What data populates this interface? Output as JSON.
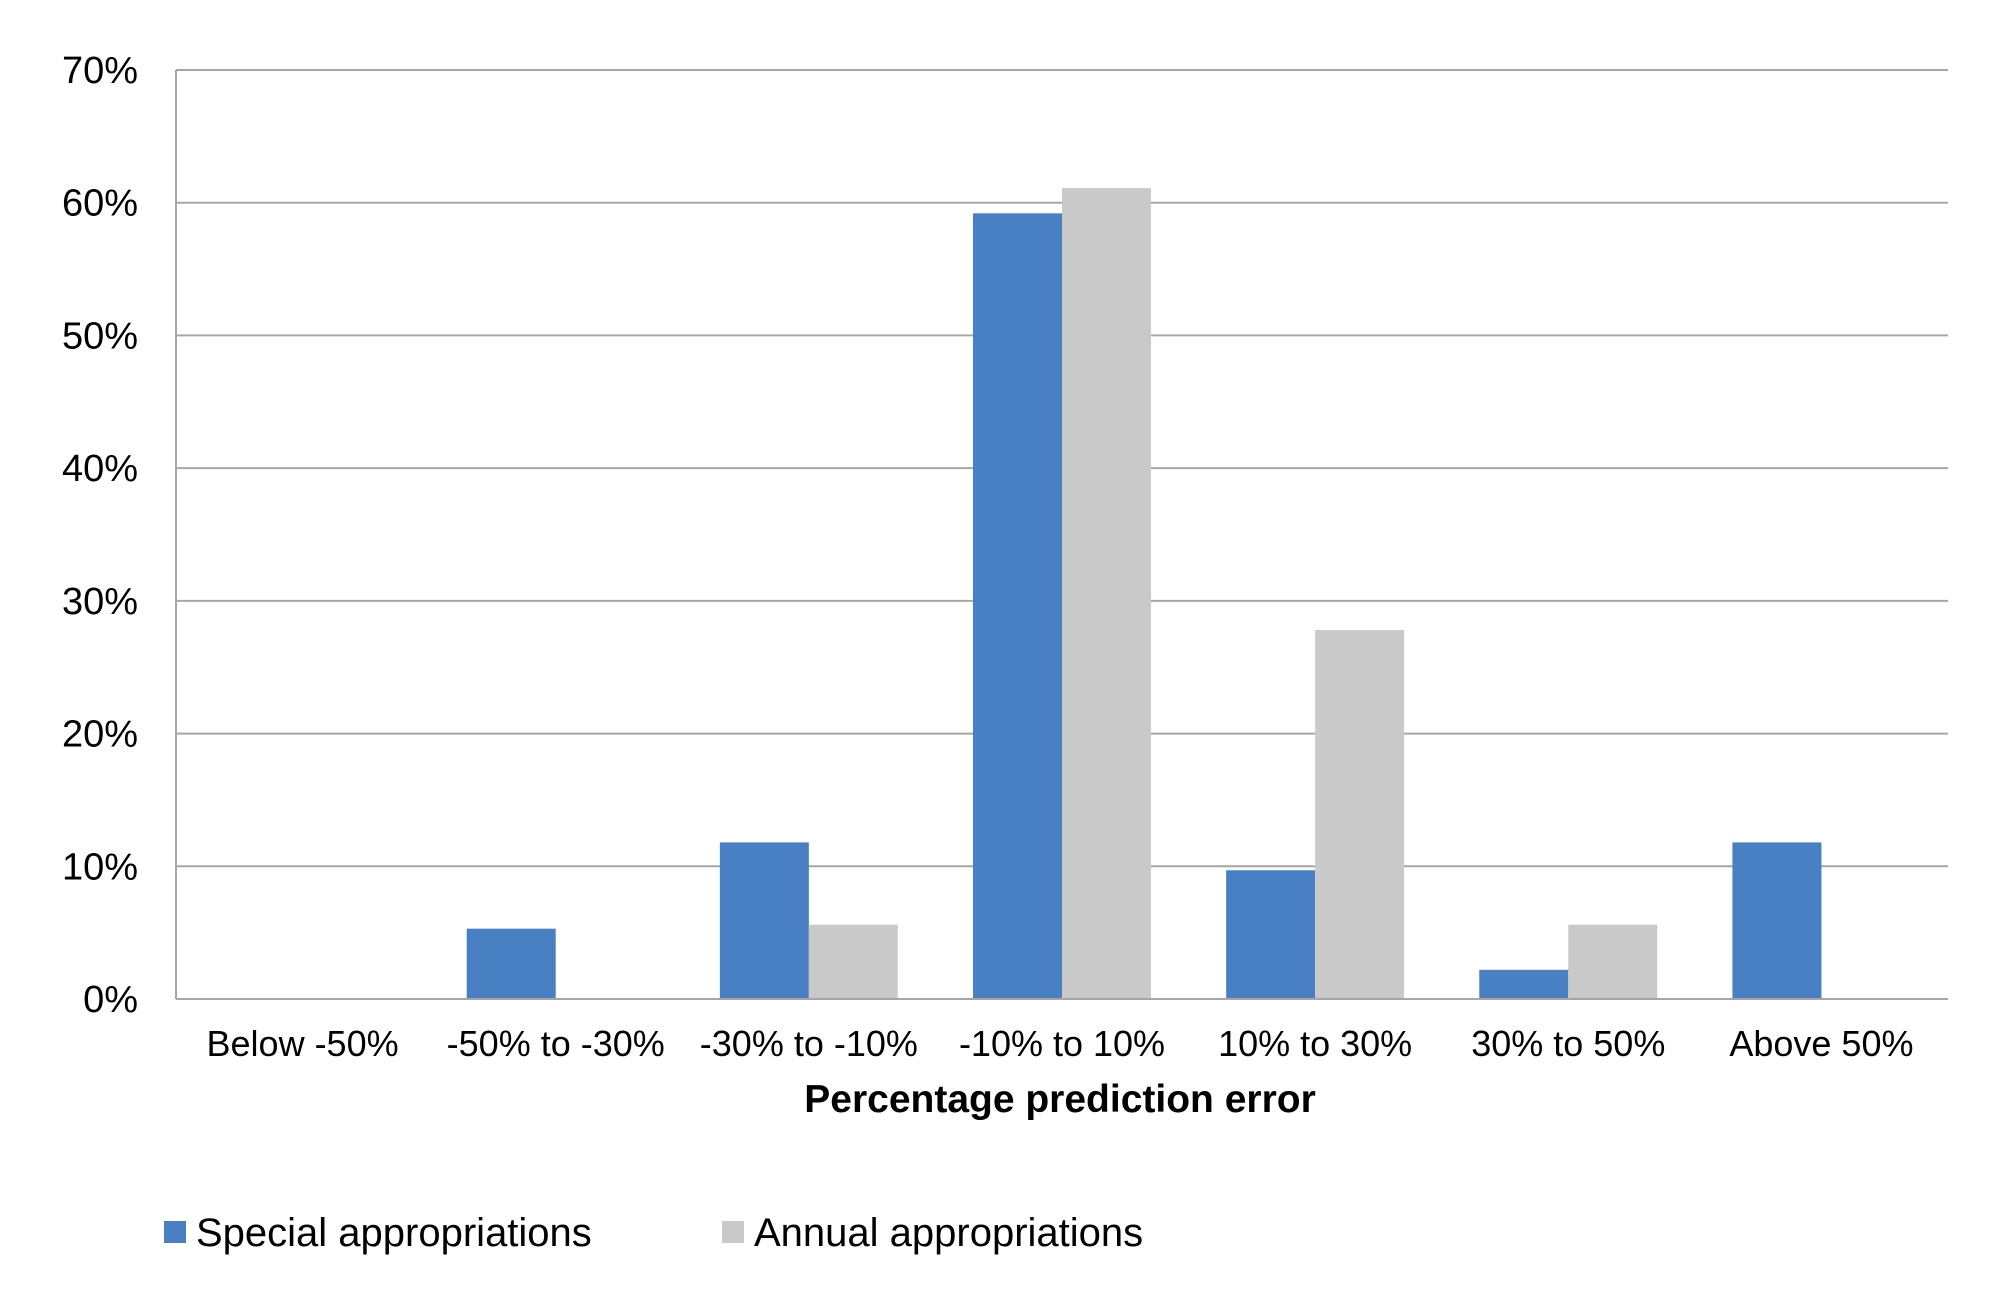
{
  "chart_data": {
    "type": "bar",
    "title": "",
    "xlabel": "Percentage prediction error",
    "ylabel": "",
    "categories": [
      "Below -50%",
      "-50% to -30%",
      "-30% to -10%",
      "-10% to 10%",
      "10% to 30%",
      "30% to 50%",
      "Above 50%"
    ],
    "series": [
      {
        "name": "Special appropriations",
        "color": "#4880c3",
        "values": [
          0,
          5.3,
          11.8,
          59.2,
          9.7,
          2.2,
          11.8
        ]
      },
      {
        "name": "Annual appropriations",
        "color": "#c9c9c9",
        "values": [
          0,
          0,
          5.6,
          61.1,
          27.8,
          5.6,
          0
        ]
      }
    ],
    "ylim": [
      0,
      70
    ],
    "yticks": [
      0,
      10,
      20,
      30,
      40,
      50,
      60,
      70
    ],
    "ytick_labels": [
      "0%",
      "10%",
      "20%",
      "30%",
      "40%",
      "50%",
      "60%",
      "70%"
    ],
    "grid": true,
    "legend": "bottom-left"
  }
}
